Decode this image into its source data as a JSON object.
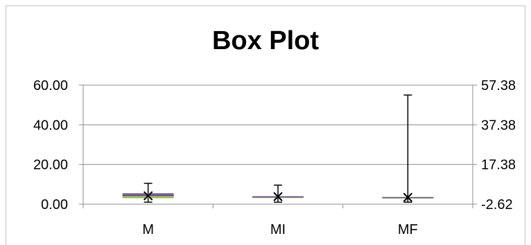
{
  "chart_data": {
    "type": "box",
    "title": "Box Plot",
    "categories": [
      "M",
      "MI",
      "MF"
    ],
    "ylim": [
      0,
      60
    ],
    "secondary_ylim": [
      -2.62,
      57.38
    ],
    "y_ticks": [
      "0.00",
      "20.00",
      "40.00",
      "60.00"
    ],
    "secondary_ticks": [
      "-2.62",
      "17.38",
      "37.38",
      "57.38"
    ],
    "grid": true,
    "legend": "none",
    "boxes": [
      {
        "category": "M",
        "min": 1.0,
        "q1": 3.0,
        "median": 4.3,
        "q3": 5.5,
        "max": 10.5,
        "mean": 4.2
      },
      {
        "category": "MI",
        "min": 1.0,
        "q1": 3.4,
        "median": 3.6,
        "q3": 4.0,
        "max": 9.6,
        "mean": 3.8
      },
      {
        "category": "MF",
        "min": 1.0,
        "q1": 3.3,
        "median": 3.4,
        "q3": 3.5,
        "max": 55.0,
        "mean": 3.4
      }
    ],
    "colors": {
      "grid": "#8c8c8c",
      "box_upper": "#7b59a0",
      "box_lower": "#9bbb59",
      "whisker": "#000000"
    }
  }
}
